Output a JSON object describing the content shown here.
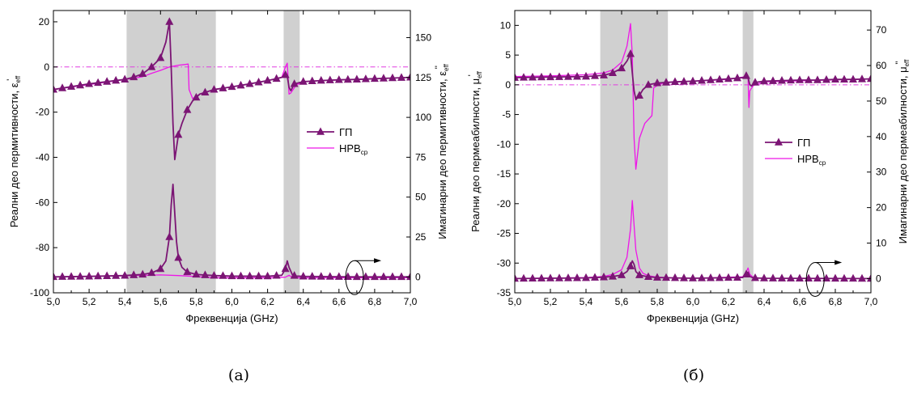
{
  "colors": {
    "gp": "#7b1574",
    "nrv": "#ee16e8",
    "shade": "#d0d0d0",
    "zero_line": "#e03ce0"
  },
  "legend": {
    "gp": "ГП",
    "nrv_main": "НРВ",
    "nrv_sub": "ср"
  },
  "chart_data": [
    {
      "id": "a",
      "type": "line",
      "caption": "(а)",
      "xlabel": "Фреквенција (GHz)",
      "ylabel_left": {
        "main": "Реални део пермитивности, ε",
        "sub": "eff",
        "sup": "'"
      },
      "ylabel_right": {
        "main": "Имагинарни део пермитивности, ε",
        "sub": "eff",
        "sup": "''"
      },
      "xlim": [
        5.0,
        7.0
      ],
      "ylim_left": [
        -100,
        25
      ],
      "ylim_right": [
        -10,
        167
      ],
      "xticks": [
        "5,0",
        "5,2",
        "5,4",
        "5,6",
        "5,8",
        "6,0",
        "6,2",
        "6,4",
        "6,6",
        "6,8",
        "7,0"
      ],
      "yticks_left": [
        "-100",
        "-80",
        "-60",
        "-40",
        "-20",
        "0",
        "20"
      ],
      "yticks_right": [
        "0",
        "25",
        "50",
        "75",
        "100",
        "125",
        "150"
      ],
      "shaded_bands": [
        [
          5.41,
          5.91
        ],
        [
          6.29,
          6.38
        ]
      ],
      "zero_line": 0,
      "arrow_note": {
        "x": 6.71,
        "y_right": 0
      },
      "series": [
        {
          "name": "ГП",
          "axis": "left",
          "x": [
            5.0,
            5.1,
            5.2,
            5.3,
            5.4,
            5.45,
            5.5,
            5.55,
            5.6,
            5.63,
            5.65,
            5.66,
            5.67,
            5.68,
            5.7,
            5.72,
            5.75,
            5.78,
            5.82,
            5.9,
            6.0,
            6.1,
            6.2,
            6.25,
            6.28,
            6.3,
            6.31,
            6.32,
            6.33,
            6.35,
            6.4,
            6.5,
            6.6,
            6.7,
            6.8,
            6.9,
            7.0
          ],
          "y": [
            -10,
            -8.7,
            -7.5,
            -6.5,
            -5.5,
            -4.5,
            -3,
            0,
            4,
            11,
            20,
            0,
            -25,
            -41,
            -30,
            -25,
            -19,
            -15,
            -12,
            -10,
            -8.8,
            -7.5,
            -6,
            -5.2,
            -4.6,
            -3.5,
            -4,
            -9,
            -10.5,
            -7.5,
            -6.5,
            -6,
            -5.7,
            -5.5,
            -5.2,
            -4.9,
            -4.6
          ]
        },
        {
          "name": "НРВср",
          "axis": "left",
          "x": [
            5.0,
            5.2,
            5.4,
            5.5,
            5.55,
            5.6,
            5.65,
            5.7,
            5.74,
            5.755,
            5.76,
            5.78,
            5.82,
            5.9,
            6.0,
            6.1,
            6.2,
            6.28,
            6.3,
            6.31,
            6.32,
            6.33,
            6.36,
            6.4,
            6.5,
            6.6,
            6.7,
            6.8,
            6.9,
            7.0
          ],
          "y": [
            -10,
            -7.8,
            -5.6,
            -4.3,
            -2.8,
            -1.5,
            0,
            0.8,
            1.1,
            1.3,
            -10,
            -14,
            -12,
            -10,
            -8.8,
            -7.5,
            -6,
            -4.5,
            0,
            1.7,
            -12,
            -11.5,
            -8,
            -6.6,
            -6,
            -5.7,
            -5.5,
            -5.2,
            -4.9,
            -4.6
          ]
        },
        {
          "name": "ГП",
          "axis": "right",
          "x": [
            5.0,
            5.2,
            5.4,
            5.5,
            5.55,
            5.6,
            5.63,
            5.65,
            5.66,
            5.67,
            5.68,
            5.69,
            5.7,
            5.72,
            5.75,
            5.8,
            5.9,
            6.0,
            6.2,
            6.28,
            6.3,
            6.31,
            6.32,
            6.34,
            6.36,
            6.4,
            6.5,
            6.6,
            6.7,
            6.8,
            6.9,
            7.0
          ],
          "y": [
            0,
            0.3,
            0.8,
            1.5,
            2.5,
            5,
            10,
            25,
            45,
            58,
            40,
            22,
            12,
            6,
            3,
            1.5,
            0.8,
            0.5,
            0.4,
            1,
            5,
            10,
            6,
            1,
            0.5,
            0.3,
            0.2,
            0.1,
            0,
            0,
            0,
            0
          ]
        },
        {
          "name": "НРВср",
          "axis": "right",
          "x": [
            5.0,
            5.3,
            5.5,
            5.6,
            5.7,
            5.8,
            5.9,
            6.2,
            6.3,
            6.32,
            6.34,
            6.4,
            7.0
          ],
          "y": [
            0,
            0.5,
            0.9,
            1.2,
            0.8,
            0.2,
            -0.5,
            -0.5,
            -0.2,
            1,
            -0.4,
            -0.6,
            -0.5
          ]
        }
      ]
    },
    {
      "id": "b",
      "type": "line",
      "caption": "(б)",
      "xlabel": "Фреквенција (GHz)",
      "ylabel_left": {
        "main": "Реални део пермеабилности, μ",
        "sub": "eff",
        "sup": "'"
      },
      "ylabel_right": {
        "main": "Имагинарни део пермеабилности, μ",
        "sub": "eff",
        "sup": "''"
      },
      "xlim": [
        5.0,
        7.0
      ],
      "ylim_left": [
        -35,
        12.5
      ],
      "ylim_right": [
        -4,
        75.5
      ],
      "xticks": [
        "5,0",
        "5,2",
        "5,4",
        "5,6",
        "5,8",
        "6,0",
        "6,2",
        "6,4",
        "6,6",
        "6,8",
        "7,0"
      ],
      "yticks_left": [
        "-35",
        "-30",
        "-25",
        "-20",
        "-15",
        "-10",
        "-5",
        "0",
        "5",
        "10"
      ],
      "yticks_right": [
        "0",
        "10",
        "20",
        "30",
        "40",
        "50",
        "60",
        "70"
      ],
      "shaded_bands": [
        [
          5.48,
          5.86
        ],
        [
          6.28,
          6.34
        ]
      ],
      "zero_line": 0,
      "arrow_note": {
        "x": 6.71,
        "y_right": 0
      },
      "series": [
        {
          "name": "ГП",
          "axis": "left",
          "x": [
            5.0,
            5.2,
            5.4,
            5.5,
            5.55,
            5.6,
            5.63,
            5.65,
            5.66,
            5.67,
            5.68,
            5.7,
            5.72,
            5.75,
            5.8,
            5.9,
            6.0,
            6.1,
            6.2,
            6.28,
            6.3,
            6.31,
            6.32,
            6.33,
            6.35,
            6.4,
            6.5,
            6.6,
            6.7,
            6.8,
            6.9,
            7.0
          ],
          "y": [
            1.2,
            1.3,
            1.4,
            1.6,
            2,
            2.8,
            4,
            5.2,
            2,
            -1,
            -2.5,
            -1.8,
            -0.8,
            0,
            0.3,
            0.5,
            0.6,
            0.8,
            1,
            1.2,
            1.5,
            1.2,
            0,
            -0.2,
            0.4,
            0.6,
            0.7,
            0.8,
            0.8,
            0.9,
            0.9,
            1
          ]
        },
        {
          "name": "НРВср",
          "axis": "left",
          "x": [
            5.0,
            5.2,
            5.4,
            5.5,
            5.55,
            5.6,
            5.63,
            5.65,
            5.66,
            5.67,
            5.68,
            5.7,
            5.73,
            5.77,
            5.78,
            5.82,
            5.9,
            6.0,
            6.2,
            6.3,
            6.31,
            6.315,
            6.32,
            6.34,
            6.4,
            7.0
          ],
          "y": [
            1.4,
            1.5,
            1.7,
            2,
            2.5,
            3.8,
            6.5,
            10.3,
            5,
            -9,
            -14.2,
            -9,
            -6.5,
            -5.2,
            -0.5,
            0.2,
            0.5,
            0.6,
            0.9,
            1.4,
            1.1,
            -3.8,
            -1,
            -0.1,
            0.5,
            1
          ]
        },
        {
          "name": "ГП",
          "axis": "right",
          "x": [
            5.0,
            5.4,
            5.5,
            5.55,
            5.6,
            5.63,
            5.65,
            5.66,
            5.67,
            5.68,
            5.7,
            5.75,
            5.8,
            5.9,
            6.0,
            6.28,
            6.3,
            6.31,
            6.32,
            6.34,
            6.4,
            7.0
          ],
          "y": [
            0,
            0.2,
            0.4,
            0.6,
            1,
            2,
            3.5,
            5,
            4,
            2,
            1,
            0.5,
            0.3,
            0.2,
            0.1,
            0.3,
            1.2,
            1.8,
            0.6,
            0.2,
            0.1,
            0
          ]
        },
        {
          "name": "НРВср",
          "axis": "right",
          "x": [
            5.0,
            5.4,
            5.5,
            5.55,
            5.6,
            5.63,
            5.65,
            5.66,
            5.67,
            5.68,
            5.7,
            5.72,
            5.75,
            5.8,
            5.9,
            6.0,
            6.28,
            6.3,
            6.31,
            6.32,
            6.34,
            6.4,
            7.0
          ],
          "y": [
            0,
            0.3,
            0.6,
            1.2,
            2.5,
            6,
            14,
            22,
            15,
            8,
            3,
            1.5,
            0.8,
            0.4,
            0.2,
            0.1,
            0.5,
            1.8,
            3,
            1.2,
            0.3,
            0.1,
            0
          ]
        }
      ]
    }
  ]
}
